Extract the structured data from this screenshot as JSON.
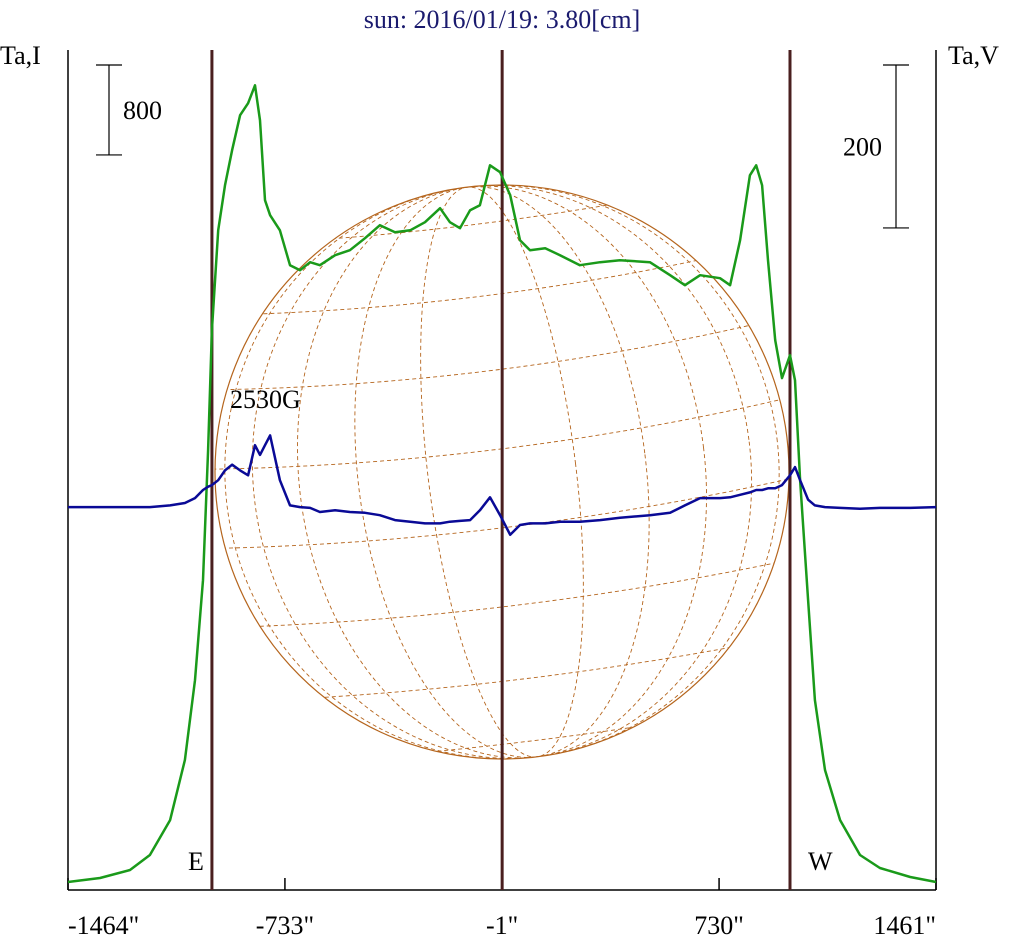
{
  "chart_data": {
    "type": "line",
    "title": "sun: 2016/01/19: 3.80[cm]",
    "ylabel": "Ta,I",
    "y2label": "Ta,V",
    "x": [
      -1464,
      -1356,
      -1255,
      -1188,
      -1120,
      -1070,
      -1036,
      -1009,
      -992,
      -979,
      -958,
      -935,
      -911,
      -884,
      -857,
      -834,
      -817,
      -800,
      -783,
      -750,
      -716,
      -682,
      -648,
      -615,
      -564,
      -514,
      -463,
      -413,
      -362,
      -311,
      -261,
      -210,
      -177,
      -143,
      -109,
      -76,
      -42,
      -8,
      26,
      59,
      93,
      144,
      194,
      261,
      329,
      396,
      497,
      565,
      615,
      666,
      733,
      767,
      801,
      834,
      855,
      875,
      895,
      919,
      942,
      969,
      986,
      1003,
      1030,
      1053,
      1087,
      1138,
      1205,
      1272,
      1374,
      1461
    ],
    "series": [
      {
        "name": "I",
        "color": "#1a9a1a",
        "values": [
          71,
          107,
          178,
          311,
          622,
          1156,
          1867,
          2756,
          3912,
          4978,
          5867,
          6267,
          6579,
          6890,
          6997,
          7156,
          6845,
          6134,
          6001,
          5867,
          5556,
          5512,
          5583,
          5556,
          5645,
          5690,
          5796,
          5912,
          5850,
          5867,
          5939,
          6063,
          5939,
          5885,
          6045,
          6090,
          6445,
          6383,
          6179,
          5779,
          5690,
          5707,
          5645,
          5556,
          5583,
          5601,
          5583,
          5467,
          5378,
          5467,
          5441,
          5378,
          5779,
          6356,
          6445,
          6267,
          5601,
          4890,
          4552,
          4756,
          4534,
          3645,
          2578,
          1689,
          1067,
          622,
          311,
          196,
          116,
          71
        ]
      },
      {
        "name": "V",
        "color": "#0a0a96",
        "axis": "y2",
        "values": [
          0,
          0,
          0,
          0,
          2,
          5,
          11,
          21,
          25,
          27,
          33,
          45,
          52,
          45,
          39,
          76,
          64,
          76,
          88,
          33,
          2,
          0,
          -1,
          -6,
          -4,
          -6,
          -7,
          -10,
          -16,
          -18,
          -20,
          -20,
          -18,
          -17,
          -16,
          -4,
          12,
          -10,
          -34,
          -22,
          -20,
          -20,
          -18,
          -18,
          -16,
          -13,
          -10,
          -7,
          2,
          11,
          11,
          12,
          15,
          18,
          21,
          21,
          23,
          23,
          27,
          39,
          49,
          33,
          9,
          2,
          0,
          -1,
          -2,
          -1,
          -1,
          0
        ]
      }
    ],
    "xlim": [
      -1464,
      1461
    ],
    "xticks": [
      {
        "value": -1464,
        "label": "-1464\""
      },
      {
        "value": -733,
        "label": "-733\""
      },
      {
        "value": -1,
        "label": "-1\""
      },
      {
        "value": 730,
        "label": "730\""
      },
      {
        "value": 1461,
        "label": "1461\""
      }
    ],
    "ylim": [
      0,
      7470
    ],
    "y2lim": [
      -470,
      561
    ],
    "scale_bars": [
      {
        "value": 800,
        "axis": "y"
      },
      {
        "value": 200,
        "axis": "y2"
      }
    ],
    "limb_lines": [
      {
        "x": -979,
        "label": "E"
      },
      {
        "x": -1
      },
      {
        "x": 969,
        "label": "W"
      }
    ],
    "annotation": "2530G"
  }
}
